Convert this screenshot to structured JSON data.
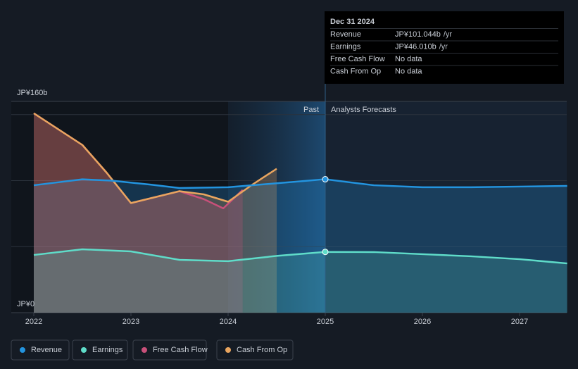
{
  "chart_data": {
    "type": "line",
    "ylim": [
      0,
      160
    ],
    "yticks": [
      {
        "value": 0,
        "label": "JP¥0"
      },
      {
        "value": 160,
        "label": "JP¥160b"
      }
    ],
    "ygrid": [
      50,
      100,
      150
    ],
    "xlim": [
      2022,
      2027.49
    ],
    "xticks": [
      2022,
      2023,
      2024,
      2025,
      2026,
      2027
    ],
    "past_label": "Past",
    "forecast_label": "Analysts Forecasts",
    "forecast_start": 2025,
    "series": [
      {
        "name": "Revenue",
        "color": "#2394df",
        "x": [
          2022,
          2022.5,
          2022.8,
          2023.2,
          2023.5,
          2024,
          2024.5,
          2025,
          2025.5,
          2026,
          2026.5,
          2027,
          2027.49
        ],
        "values": [
          96.5,
          101,
          100,
          97,
          94.4,
          95,
          98,
          101.044,
          96.5,
          95,
          95,
          95.5,
          96
        ]
      },
      {
        "name": "Earnings",
        "color": "#5fdcc9",
        "x": [
          2022,
          2022.5,
          2023,
          2023.5,
          2024,
          2024.5,
          2025,
          2025.5,
          2026,
          2026.5,
          2027,
          2027.49
        ],
        "values": [
          43.7,
          48,
          46.4,
          40,
          39,
          43,
          46.01,
          45.9,
          44.3,
          42.7,
          40.5,
          37.3
        ]
      },
      {
        "name": "Free Cash Flow",
        "color": "#c8507a",
        "x": [
          2022,
          2022.5,
          2022.75,
          2023,
          2023.5,
          2023.75,
          2023.95,
          2024.15
        ],
        "values": [
          151,
          127,
          106,
          83,
          92,
          86,
          79,
          93
        ]
      },
      {
        "name": "Cash From Op",
        "color": "#e9a55f",
        "x": [
          2022,
          2022.5,
          2022.75,
          2023,
          2023.5,
          2023.75,
          2024,
          2024.25,
          2024.5
        ],
        "values": [
          151,
          127,
          106,
          83,
          92,
          89.6,
          84,
          97,
          109
        ]
      }
    ],
    "tooltip": {
      "date": "Dec 31 2024",
      "rows": [
        {
          "label": "Revenue",
          "value": "JP¥101.044b",
          "unit": "/yr"
        },
        {
          "label": "Earnings",
          "value": "JP¥46.010b",
          "unit": "/yr"
        },
        {
          "label": "Free Cash Flow",
          "value": "No data"
        },
        {
          "label": "Cash From Op",
          "value": "No data"
        }
      ]
    }
  }
}
